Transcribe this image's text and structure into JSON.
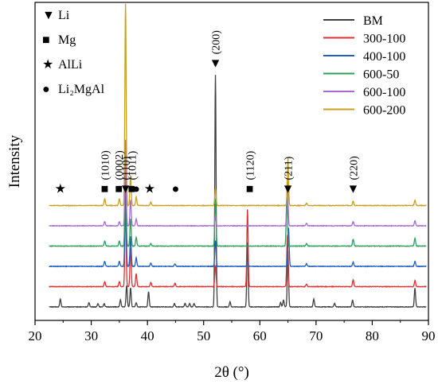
{
  "chart_data": {
    "type": "line",
    "title": "",
    "xlabel": "2θ (°)",
    "ylabel": "Intensity",
    "xlim": [
      20,
      90
    ],
    "x_ticks": [
      "20",
      "30",
      "40",
      "50",
      "60",
      "70",
      "80",
      "90"
    ],
    "y_ticks_shown": false,
    "offset_stacked": true,
    "legend_position": "top-right",
    "series": [
      {
        "name": "BM",
        "color": "#404040",
        "peaks": [
          [
            24.5,
            0.09
          ],
          [
            29.6,
            0.05
          ],
          [
            31.2,
            0.04
          ],
          [
            32.3,
            0.04
          ],
          [
            35.2,
            0.08
          ],
          [
            36.3,
            0.25
          ],
          [
            37.0,
            0.22
          ],
          [
            38.0,
            0.05
          ],
          [
            40.2,
            0.18
          ],
          [
            44.8,
            0.04
          ],
          [
            46.7,
            0.04
          ],
          [
            47.5,
            0.04
          ],
          [
            48.3,
            0.04
          ],
          [
            52.1,
            2.7
          ],
          [
            54.7,
            0.06
          ],
          [
            57.8,
            0.75
          ],
          [
            63.7,
            0.05
          ],
          [
            64.2,
            0.08
          ],
          [
            65.0,
            0.65
          ],
          [
            69.6,
            0.09
          ],
          [
            73.3,
            0.04
          ],
          [
            76.5,
            0.08
          ],
          [
            87.6,
            0.22
          ]
        ]
      },
      {
        "name": "300-100",
        "color": "#e03030",
        "peaks": [
          [
            32.4,
            0.06
          ],
          [
            35.0,
            0.06
          ],
          [
            36.1,
            0.95
          ],
          [
            37.0,
            0.45
          ],
          [
            38.0,
            0.15
          ],
          [
            40.6,
            0.05
          ],
          [
            44.9,
            0.04
          ],
          [
            52.1,
            0.25
          ],
          [
            57.8,
            0.9
          ],
          [
            64.9,
            0.6
          ],
          [
            68.3,
            0.03
          ],
          [
            76.6,
            0.08
          ],
          [
            87.6,
            0.07
          ]
        ]
      },
      {
        "name": "400-100",
        "color": "#1f5fbf",
        "peaks": [
          [
            32.4,
            0.06
          ],
          [
            35.0,
            0.06
          ],
          [
            36.1,
            1.0
          ],
          [
            37.0,
            0.35
          ],
          [
            38.0,
            0.1
          ],
          [
            40.6,
            0.04
          ],
          [
            44.9,
            0.03
          ],
          [
            52.1,
            0.3
          ],
          [
            57.8,
            0.04
          ],
          [
            65.1,
            0.45
          ],
          [
            68.3,
            0.03
          ],
          [
            76.6,
            0.05
          ],
          [
            87.6,
            0.06
          ]
        ]
      },
      {
        "name": "600-50",
        "color": "#2e9e5b",
        "peaks": [
          [
            32.4,
            0.06
          ],
          [
            35.0,
            0.06
          ],
          [
            36.1,
            1.05
          ],
          [
            37.0,
            0.32
          ],
          [
            38.0,
            0.1
          ],
          [
            40.6,
            0.03
          ],
          [
            52.1,
            0.55
          ],
          [
            64.8,
            0.55
          ],
          [
            68.3,
            0.03
          ],
          [
            76.6,
            0.08
          ],
          [
            87.6,
            0.09
          ]
        ]
      },
      {
        "name": "600-100",
        "color": "#a86ad1",
        "peaks": [
          [
            32.4,
            0.05
          ],
          [
            35.0,
            0.05
          ],
          [
            36.1,
            1.0
          ],
          [
            37.0,
            0.3
          ],
          [
            38.0,
            0.08
          ],
          [
            52.1,
            0.1
          ],
          [
            64.9,
            0.55
          ],
          [
            68.3,
            0.03
          ],
          [
            76.6,
            0.05
          ],
          [
            87.6,
            0.06
          ]
        ]
      },
      {
        "name": "600-200",
        "color": "#c8a020",
        "peaks": [
          [
            32.4,
            0.08
          ],
          [
            35.0,
            0.08
          ],
          [
            36.1,
            2.35
          ],
          [
            37.0,
            0.35
          ],
          [
            38.0,
            0.1
          ],
          [
            40.6,
            0.04
          ],
          [
            52.1,
            0.2
          ],
          [
            65.0,
            0.55
          ],
          [
            68.3,
            0.03
          ],
          [
            76.6,
            0.05
          ],
          [
            87.6,
            0.06
          ]
        ]
      }
    ],
    "legend": {
      "symbols": [
        {
          "glyph": "▼",
          "label": "Li"
        },
        {
          "glyph": "■",
          "label": "Mg"
        },
        {
          "glyph": "★",
          "label": "AlLi"
        },
        {
          "glyph": "●",
          "label": "Li₂MgAl"
        }
      ]
    },
    "annotations": {
      "peak_labels": [
        {
          "x": 36.1,
          "text": "(110)",
          "marker": "▼"
        },
        {
          "x": 52.1,
          "text": "(200)",
          "marker": "▼"
        },
        {
          "x": 65.0,
          "text": "(211)",
          "marker": "▼"
        },
        {
          "x": 76.6,
          "text": "(220)",
          "marker": "▼"
        },
        {
          "x": 37.2,
          "text": "(1011)",
          "marker": "■"
        },
        {
          "x": 58.2,
          "text": "(1120)",
          "marker": "■"
        },
        {
          "x": 32.4,
          "text": "(1010)",
          "marker": "■"
        },
        {
          "x": 34.9,
          "text": "(0002)",
          "marker": "■"
        }
      ],
      "phase_markers": [
        {
          "x": 24.5,
          "glyph": "★"
        },
        {
          "x": 40.4,
          "glyph": "★"
        },
        {
          "x": 38.0,
          "glyph": "●"
        },
        {
          "x": 45.0,
          "glyph": "●"
        }
      ]
    }
  }
}
